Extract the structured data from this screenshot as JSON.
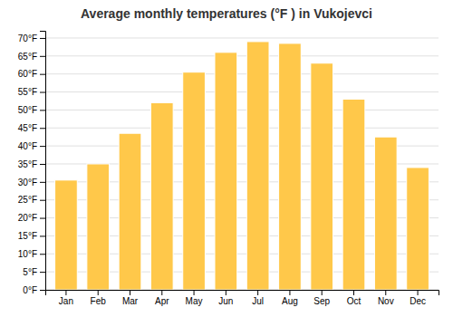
{
  "chart_data": {
    "type": "bar",
    "title": "Average monthly temperatures (°F ) in Vukojevci",
    "categories": [
      "Jan",
      "Feb",
      "Mar",
      "Apr",
      "May",
      "Jun",
      "Jul",
      "Aug",
      "Sep",
      "Oct",
      "Nov",
      "Dec"
    ],
    "values": [
      30.5,
      35.0,
      43.5,
      52.0,
      60.5,
      66.0,
      69.0,
      68.5,
      63.0,
      53.0,
      42.5,
      34.0
    ],
    "color": "#FFC84A",
    "ylim": [
      0,
      72
    ],
    "yticks": [
      {
        "value": 0,
        "label": "0°F"
      },
      {
        "value": 5,
        "label": "5°F"
      },
      {
        "value": 10,
        "label": "10°F"
      },
      {
        "value": 15,
        "label": "15°F"
      },
      {
        "value": 20,
        "label": "20°F"
      },
      {
        "value": 25,
        "label": "25°F"
      },
      {
        "value": 30,
        "label": "30°F"
      },
      {
        "value": 35,
        "label": "35°F"
      },
      {
        "value": 40,
        "label": "40°F"
      },
      {
        "value": 45,
        "label": "45°F"
      },
      {
        "value": 50,
        "label": "50°F"
      },
      {
        "value": 55,
        "label": "55°F"
      },
      {
        "value": 60,
        "label": "60°F"
      },
      {
        "value": 65,
        "label": "65°F"
      },
      {
        "value": 70,
        "label": "70°F"
      }
    ],
    "grid": true
  }
}
